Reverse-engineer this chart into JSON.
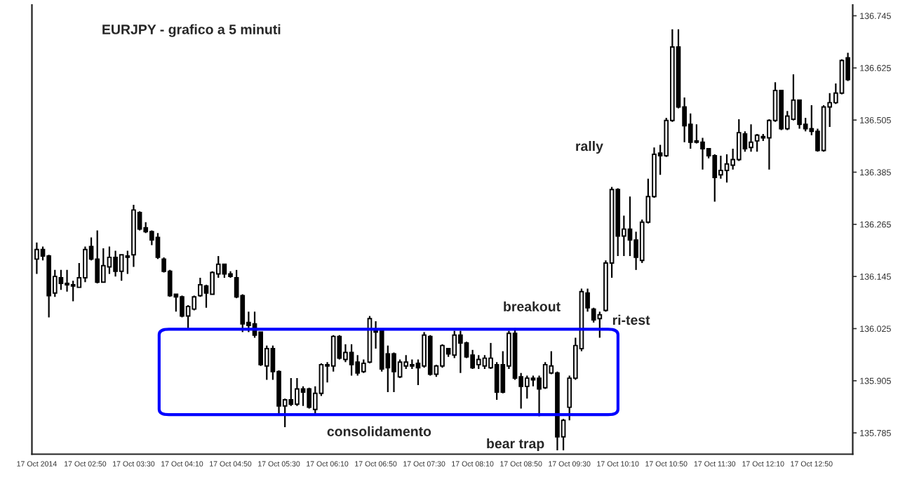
{
  "chart_data": {
    "type": "candlestick",
    "title": "EURJPY - grafico a 5 minuti",
    "color": "#000000",
    "x": [
      "2014-10-17T02:10",
      "2014-10-17T02:15",
      "2014-10-17T02:20",
      "2014-10-17T02:25",
      "2014-10-17T02:30",
      "2014-10-17T02:35",
      "2014-10-17T02:40",
      "2014-10-17T02:45",
      "2014-10-17T02:50",
      "2014-10-17T02:55",
      "2014-10-17T03:00",
      "2014-10-17T03:05",
      "2014-10-17T03:10",
      "2014-10-17T03:15",
      "2014-10-17T03:20",
      "2014-10-17T03:25",
      "2014-10-17T03:30",
      "2014-10-17T03:35",
      "2014-10-17T03:40",
      "2014-10-17T03:45",
      "2014-10-17T03:50",
      "2014-10-17T03:55",
      "2014-10-17T04:00",
      "2014-10-17T04:05",
      "2014-10-17T04:10",
      "2014-10-17T04:15",
      "2014-10-17T04:20",
      "2014-10-17T04:25",
      "2014-10-17T04:30",
      "2014-10-17T04:35",
      "2014-10-17T04:40",
      "2014-10-17T04:45",
      "2014-10-17T04:50",
      "2014-10-17T04:55",
      "2014-10-17T05:00",
      "2014-10-17T05:05",
      "2014-10-17T05:10",
      "2014-10-17T05:15",
      "2014-10-17T05:20",
      "2014-10-17T05:25",
      "2014-10-17T05:30",
      "2014-10-17T05:35",
      "2014-10-17T05:40",
      "2014-10-17T05:45",
      "2014-10-17T05:50",
      "2014-10-17T05:55",
      "2014-10-17T06:00",
      "2014-10-17T06:05",
      "2014-10-17T06:10",
      "2014-10-17T06:15",
      "2014-10-17T06:20",
      "2014-10-17T06:25",
      "2014-10-17T06:30",
      "2014-10-17T06:35",
      "2014-10-17T06:40",
      "2014-10-17T06:45",
      "2014-10-17T06:50",
      "2014-10-17T06:55",
      "2014-10-17T07:00",
      "2014-10-17T07:05",
      "2014-10-17T07:10",
      "2014-10-17T07:15",
      "2014-10-17T07:20",
      "2014-10-17T07:25",
      "2014-10-17T07:30",
      "2014-10-17T07:35",
      "2014-10-17T07:40",
      "2014-10-17T07:45",
      "2014-10-17T07:50",
      "2014-10-17T07:55",
      "2014-10-17T08:00",
      "2014-10-17T08:05",
      "2014-10-17T08:10",
      "2014-10-17T08:15",
      "2014-10-17T08:20",
      "2014-10-17T08:25",
      "2014-10-17T08:30",
      "2014-10-17T08:35",
      "2014-10-17T08:40",
      "2014-10-17T08:45",
      "2014-10-17T08:50",
      "2014-10-17T08:55",
      "2014-10-17T09:00",
      "2014-10-17T09:05",
      "2014-10-17T09:10",
      "2014-10-17T09:15",
      "2014-10-17T09:20",
      "2014-10-17T09:25",
      "2014-10-17T09:30",
      "2014-10-17T09:35",
      "2014-10-17T09:40",
      "2014-10-17T09:45",
      "2014-10-17T09:50",
      "2014-10-17T09:55",
      "2014-10-17T10:00",
      "2014-10-17T10:05",
      "2014-10-17T10:10",
      "2014-10-17T10:15",
      "2014-10-17T10:20",
      "2014-10-17T10:25",
      "2014-10-17T10:30",
      "2014-10-17T10:35",
      "2014-10-17T10:40",
      "2014-10-17T10:45",
      "2014-10-17T10:50",
      "2014-10-17T10:55",
      "2014-10-17T11:00",
      "2014-10-17T11:05",
      "2014-10-17T11:10",
      "2014-10-17T11:15",
      "2014-10-17T11:20",
      "2014-10-17T11:25",
      "2014-10-17T11:30",
      "2014-10-17T11:35",
      "2014-10-17T11:40",
      "2014-10-17T11:45",
      "2014-10-17T11:50",
      "2014-10-17T11:55",
      "2014-10-17T12:00",
      "2014-10-17T12:05",
      "2014-10-17T12:10",
      "2014-10-17T12:15",
      "2014-10-17T12:20",
      "2014-10-17T12:25",
      "2014-10-17T12:30",
      "2014-10-17T12:35",
      "2014-10-17T12:40",
      "2014-10-17T12:45",
      "2014-10-17T12:50",
      "2014-10-17T12:55",
      "2014-10-17T13:00",
      "2014-10-17T13:05",
      "2014-10-17T13:10",
      "2014-10-17T13:15",
      "2014-10-17T13:20"
    ],
    "ohlc": [
      [
        136.185,
        136.223,
        136.151,
        136.207
      ],
      [
        136.207,
        136.214,
        136.182,
        136.192
      ],
      [
        136.192,
        136.195,
        136.051,
        136.101
      ],
      [
        136.107,
        136.16,
        136.098,
        136.145
      ],
      [
        136.142,
        136.16,
        136.114,
        136.129
      ],
      [
        136.129,
        136.16,
        136.11,
        136.126
      ],
      [
        136.126,
        136.135,
        136.088,
        136.123
      ],
      [
        136.12,
        136.176,
        136.12,
        136.142
      ],
      [
        136.142,
        136.214,
        136.132,
        136.207
      ],
      [
        136.214,
        136.235,
        136.182,
        136.185
      ],
      [
        136.185,
        136.251,
        136.129,
        136.132
      ],
      [
        136.132,
        136.21,
        136.132,
        136.17
      ],
      [
        136.167,
        136.214,
        136.151,
        136.189
      ],
      [
        136.189,
        136.204,
        136.145,
        136.157
      ],
      [
        136.157,
        136.195,
        136.135,
        136.195
      ],
      [
        136.192,
        136.204,
        136.151,
        136.189
      ],
      [
        136.195,
        136.31,
        136.167,
        136.298
      ],
      [
        136.292,
        136.295,
        136.251,
        136.254
      ],
      [
        136.257,
        136.27,
        136.245,
        136.248
      ],
      [
        136.248,
        136.251,
        136.217,
        136.229
      ],
      [
        136.235,
        136.245,
        136.185,
        136.189
      ],
      [
        136.185,
        136.189,
        136.154,
        136.157
      ],
      [
        136.157,
        136.16,
        136.098,
        136.101
      ],
      [
        136.104,
        136.104,
        136.064,
        136.098
      ],
      [
        136.098,
        136.101,
        136.051,
        136.054
      ],
      [
        136.054,
        136.079,
        136.026,
        136.076
      ],
      [
        136.07,
        136.101,
        136.067,
        136.098
      ],
      [
        136.101,
        136.142,
        136.098,
        136.126
      ],
      [
        136.123,
        136.126,
        136.073,
        136.107
      ],
      [
        136.104,
        136.157,
        136.104,
        136.154
      ],
      [
        136.151,
        136.192,
        136.142,
        136.173
      ],
      [
        136.173,
        136.173,
        136.142,
        136.151
      ],
      [
        136.151,
        136.157,
        136.142,
        136.145
      ],
      [
        136.142,
        136.16,
        136.095,
        136.098
      ],
      [
        136.101,
        136.104,
        136.017,
        136.036
      ],
      [
        136.039,
        136.064,
        136.017,
        136.032
      ],
      [
        136.036,
        136.064,
        136.004,
        136.01
      ],
      [
        136.017,
        136.017,
        135.939,
        135.942
      ],
      [
        135.939,
        135.986,
        135.907,
        135.979
      ],
      [
        135.979,
        135.986,
        135.907,
        135.926
      ],
      [
        135.926,
        135.929,
        135.826,
        135.847
      ],
      [
        135.847,
        135.864,
        135.798,
        135.861
      ],
      [
        135.861,
        135.911,
        135.847,
        135.851
      ],
      [
        135.851,
        135.911,
        135.847,
        135.886
      ],
      [
        135.886,
        135.892,
        135.847,
        135.879
      ],
      [
        135.886,
        135.889,
        135.841,
        135.844
      ],
      [
        135.839,
        135.892,
        135.829,
        135.876
      ],
      [
        135.876,
        135.945,
        135.87,
        135.942
      ],
      [
        135.942,
        135.948,
        135.901,
        135.939
      ],
      [
        135.939,
        136.01,
        135.926,
        136.007
      ],
      [
        136.007,
        136.01,
        135.954,
        135.957
      ],
      [
        135.954,
        135.989,
        135.948,
        135.97
      ],
      [
        135.97,
        135.989,
        135.917,
        135.942
      ],
      [
        135.948,
        135.964,
        135.917,
        135.923
      ],
      [
        135.926,
        135.954,
        135.923,
        135.945
      ],
      [
        135.948,
        136.054,
        135.945,
        136.048
      ],
      [
        136.02,
        136.042,
        135.979,
        136.017
      ],
      [
        136.02,
        136.02,
        135.926,
        135.932
      ],
      [
        135.967,
        135.986,
        135.879,
        135.935
      ],
      [
        135.967,
        135.97,
        135.879,
        135.926
      ],
      [
        135.914,
        135.954,
        135.911,
        135.948
      ],
      [
        135.939,
        135.964,
        135.932,
        135.948
      ],
      [
        135.942,
        135.954,
        135.932,
        135.939
      ],
      [
        135.945,
        135.954,
        135.895,
        135.935
      ],
      [
        135.939,
        136.017,
        135.935,
        136.01
      ],
      [
        136.007,
        136.01,
        135.917,
        135.92
      ],
      [
        135.92,
        135.942,
        135.914,
        135.939
      ],
      [
        135.939,
        135.989,
        135.935,
        135.986
      ],
      [
        135.979,
        135.979,
        135.96,
        135.967
      ],
      [
        135.964,
        136.02,
        135.957,
        136.01
      ],
      [
        136.01,
        136.02,
        135.923,
        135.992
      ],
      [
        135.992,
        135.995,
        135.957,
        135.96
      ],
      [
        135.964,
        135.976,
        135.932,
        135.935
      ],
      [
        135.942,
        135.964,
        135.932,
        135.954
      ],
      [
        135.939,
        135.964,
        135.932,
        135.957
      ],
      [
        135.935,
        135.992,
        135.932,
        135.957
      ],
      [
        135.942,
        135.948,
        135.861,
        135.879
      ],
      [
        135.942,
        135.973,
        135.876,
        135.879
      ],
      [
        135.939,
        136.02,
        135.932,
        136.014
      ],
      [
        136.014,
        136.026,
        135.907,
        135.911
      ],
      [
        135.914,
        135.923,
        135.841,
        135.892
      ],
      [
        135.892,
        135.917,
        135.864,
        135.911
      ],
      [
        135.911,
        135.917,
        135.892,
        135.907
      ],
      [
        135.911,
        135.917,
        135.823,
        135.886
      ],
      [
        135.889,
        135.948,
        135.886,
        135.942
      ],
      [
        135.923,
        135.973,
        135.92,
        135.939
      ],
      [
        135.923,
        135.926,
        135.745,
        135.776
      ],
      [
        135.776,
        135.817,
        135.745,
        135.814
      ],
      [
        135.844,
        135.917,
        135.814,
        135.911
      ],
      [
        135.911,
        136.004,
        135.907,
        135.986
      ],
      [
        135.979,
        136.117,
        135.973,
        136.11
      ],
      [
        136.107,
        136.117,
        136.064,
        136.073
      ],
      [
        136.07,
        136.073,
        136.039,
        136.045
      ],
      [
        136.048,
        136.064,
        136.004,
        136.057
      ],
      [
        136.067,
        136.182,
        136.064,
        136.176
      ],
      [
        136.176,
        136.351,
        136.142,
        136.345
      ],
      [
        136.345,
        136.348,
        136.192,
        136.238
      ],
      [
        136.238,
        136.285,
        136.192,
        136.254
      ],
      [
        136.254,
        136.329,
        136.192,
        136.229
      ],
      [
        136.229,
        136.248,
        136.16,
        136.189
      ],
      [
        136.182,
        136.276,
        136.176,
        136.27
      ],
      [
        136.27,
        136.37,
        136.267,
        136.329
      ],
      [
        136.329,
        136.442,
        136.326,
        136.426
      ],
      [
        136.429,
        136.448,
        136.379,
        136.423
      ],
      [
        136.423,
        136.51,
        136.42,
        136.504
      ],
      [
        136.504,
        136.714,
        136.501,
        136.673
      ],
      [
        136.673,
        136.714,
        136.532,
        136.535
      ],
      [
        136.535,
        136.557,
        136.454,
        136.492
      ],
      [
        136.495,
        136.52,
        136.439,
        136.454
      ],
      [
        136.457,
        136.495,
        136.451,
        136.454
      ],
      [
        136.454,
        136.464,
        136.391,
        136.439
      ],
      [
        136.439,
        136.439,
        136.417,
        136.423
      ],
      [
        136.423,
        136.426,
        136.317,
        136.373
      ],
      [
        136.379,
        136.423,
        136.37,
        136.389
      ],
      [
        136.389,
        136.426,
        136.361,
        136.404
      ],
      [
        136.401,
        136.439,
        136.391,
        136.414
      ],
      [
        136.414,
        136.507,
        136.411,
        136.476
      ],
      [
        136.473,
        136.479,
        136.432,
        136.439
      ],
      [
        136.442,
        136.495,
        136.432,
        136.454
      ],
      [
        136.457,
        136.473,
        136.432,
        136.47
      ],
      [
        136.467,
        136.473,
        136.457,
        136.464
      ],
      [
        136.464,
        136.507,
        136.391,
        136.504
      ],
      [
        136.504,
        136.592,
        136.501,
        136.573
      ],
      [
        136.573,
        136.573,
        136.482,
        136.485
      ],
      [
        136.485,
        136.526,
        136.482,
        136.514
      ],
      [
        136.507,
        136.61,
        136.504,
        136.551
      ],
      [
        136.551,
        136.551,
        136.485,
        136.495
      ],
      [
        136.495,
        136.51,
        136.479,
        136.485
      ],
      [
        136.485,
        136.539,
        136.47,
        136.479
      ],
      [
        136.479,
        136.485,
        136.432,
        136.435
      ],
      [
        136.435,
        136.539,
        136.432,
        136.535
      ],
      [
        136.535,
        136.567,
        136.489,
        136.545
      ],
      [
        136.545,
        136.589,
        136.542,
        136.567
      ],
      [
        136.567,
        136.645,
        136.564,
        136.642
      ],
      [
        136.648,
        136.66,
        136.595,
        136.598
      ]
    ],
    "xlim": [
      "2014-10-17T02:06",
      "2014-10-17T13:24"
    ],
    "xticks": [
      {
        "value": "2014-10-17T02:10",
        "label": "17 Oct 2014"
      },
      {
        "value": "2014-10-17T02:50",
        "label": "17 Oct 02:50"
      },
      {
        "value": "2014-10-17T03:30",
        "label": "17 Oct 03:30"
      },
      {
        "value": "2014-10-17T04:10",
        "label": "17 Oct 04:10"
      },
      {
        "value": "2014-10-17T04:50",
        "label": "17 Oct 04:50"
      },
      {
        "value": "2014-10-17T05:30",
        "label": "17 Oct 05:30"
      },
      {
        "value": "2014-10-17T06:10",
        "label": "17 Oct 06:10"
      },
      {
        "value": "2014-10-17T06:50",
        "label": "17 Oct 06:50"
      },
      {
        "value": "2014-10-17T07:30",
        "label": "17 Oct 07:30"
      },
      {
        "value": "2014-10-17T08:10",
        "label": "17 Oct 08:10"
      },
      {
        "value": "2014-10-17T08:50",
        "label": "17 Oct 08:50"
      },
      {
        "value": "2014-10-17T09:30",
        "label": "17 Oct 09:30"
      },
      {
        "value": "2014-10-17T10:10",
        "label": "17 Oct 10:10"
      },
      {
        "value": "2014-10-17T10:50",
        "label": "17 Oct 10:50"
      },
      {
        "value": "2014-10-17T11:30",
        "label": "17 Oct 11:30"
      },
      {
        "value": "2014-10-17T12:10",
        "label": "17 Oct 12:10"
      },
      {
        "value": "2014-10-17T12:50",
        "label": "17 Oct 12:50"
      }
    ],
    "ylim": [
      135.736,
      136.77
    ],
    "yticks": [
      135.785,
      135.905,
      136.025,
      136.145,
      136.265,
      136.385,
      136.505,
      136.625,
      136.745
    ],
    "annotations": [
      "rally",
      "breakout",
      "ri-test",
      "consolidamento",
      "bear trap"
    ],
    "grid": false,
    "legend": false
  }
}
